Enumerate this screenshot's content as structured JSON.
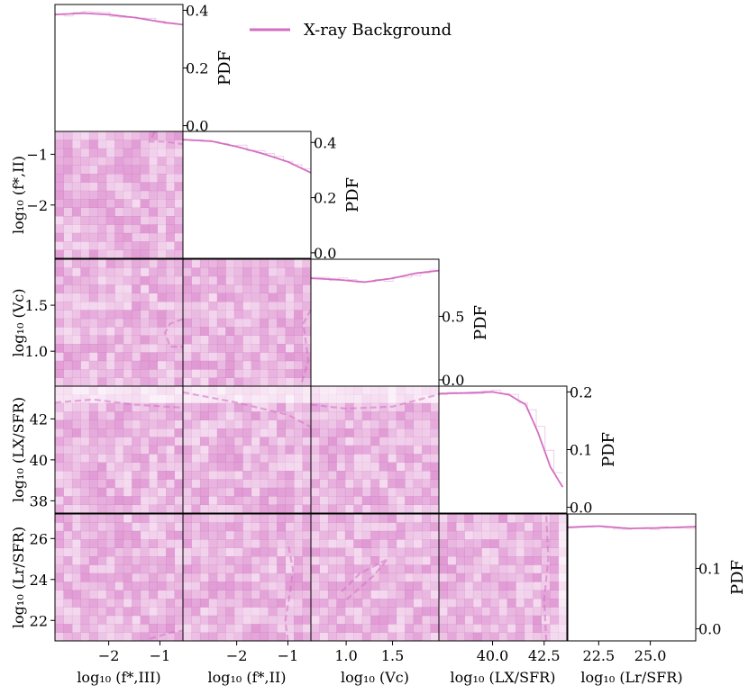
{
  "chart_data": {
    "type": "corner-plot",
    "legend": {
      "label": "X-ray Background",
      "color": "#d36fc1",
      "placement": "top-right"
    },
    "pdf_label": "PDF",
    "parameters": [
      {
        "key": "fIII",
        "xlabel": "log₁₀ (f*,III)",
        "ylabel": "log₁₀ (f*,III)",
        "range": [
          -3.05,
          -0.55
        ],
        "ticks": [
          -2,
          -1
        ],
        "tick_labels": [
          "−2",
          "−1"
        ]
      },
      {
        "key": "fII",
        "xlabel": "log₁₀ (f*,II)",
        "ylabel": "log₁₀ (f*,II)",
        "range": [
          -3.05,
          -0.55
        ],
        "ticks": [
          -2,
          -1
        ],
        "tick_labels": [
          "−2",
          "−1"
        ]
      },
      {
        "key": "Vc",
        "xlabel": "log₁₀ (Vc)",
        "ylabel": "log₁₀ (Vc)",
        "range": [
          0.62,
          2.0
        ],
        "ticks": [
          1.0,
          1.5
        ],
        "tick_labels": [
          "1.0",
          "1.5"
        ],
        "yticks": [
          1.0,
          1.5
        ],
        "ytick_labels": [
          "1.0",
          "1.5"
        ]
      },
      {
        "key": "LX",
        "xlabel": "log₁₀ (LX/SFR)",
        "ylabel": "log₁₀ (LX/SFR)",
        "range": [
          37.4,
          43.6
        ],
        "ticks": [
          40.0,
          42.5
        ],
        "tick_labels": [
          "40.0",
          "42.5"
        ],
        "yticks": [
          38,
          40,
          42
        ],
        "ytick_labels": [
          "38",
          "40",
          "42"
        ]
      },
      {
        "key": "Lr",
        "xlabel": "log₁₀ (Lr/SFR)",
        "ylabel": "log₁₀ (Lr/SFR)",
        "range": [
          21.0,
          27.2
        ],
        "ticks": [
          22.5,
          25.0
        ],
        "tick_labels": [
          "22.5",
          "25.0"
        ],
        "yticks": [
          22,
          24,
          26
        ],
        "ytick_labels": [
          "22",
          "24",
          "26"
        ]
      }
    ],
    "diagonal_pdfs": [
      {
        "param": "log₁₀ (f*,III)",
        "ylim": [
          -0.02,
          0.42
        ],
        "yticks": [
          0.0,
          0.2,
          0.4
        ],
        "ytick_labels": [
          "0.0",
          "0.2",
          "0.4"
        ],
        "x": [
          -3.05,
          -2.5,
          -2.0,
          -1.5,
          -1.0,
          -0.55
        ],
        "y": [
          0.385,
          0.39,
          0.385,
          0.375,
          0.36,
          0.35
        ]
      },
      {
        "param": "log₁₀ (f*,II)",
        "ylim": [
          -0.02,
          0.44
        ],
        "yticks": [
          0.0,
          0.2,
          0.4
        ],
        "ytick_labels": [
          "0.0",
          "0.2",
          "0.4"
        ],
        "x": [
          -3.05,
          -2.5,
          -2.0,
          -1.5,
          -1.0,
          -0.55
        ],
        "y": [
          0.41,
          0.405,
          0.385,
          0.36,
          0.33,
          0.29
        ]
      },
      {
        "param": "log₁₀ (Vc)",
        "ylim": [
          -0.05,
          0.95
        ],
        "yticks": [
          0.0,
          0.5
        ],
        "ytick_labels": [
          "0.0",
          "0.5"
        ],
        "x": [
          0.62,
          0.9,
          1.2,
          1.5,
          1.75,
          2.0
        ],
        "y": [
          0.8,
          0.79,
          0.77,
          0.8,
          0.84,
          0.86
        ]
      },
      {
        "param": "log₁₀ (LX/SFR)",
        "ylim": [
          -0.01,
          0.21
        ],
        "yticks": [
          0.0,
          0.1,
          0.2
        ],
        "ytick_labels": [
          "0.0",
          "0.1",
          "0.2"
        ],
        "x": [
          37.4,
          38.5,
          40.0,
          40.8,
          41.6,
          42.2,
          42.8,
          43.4
        ],
        "y": [
          0.197,
          0.198,
          0.2,
          0.195,
          0.178,
          0.13,
          0.07,
          0.035
        ]
      },
      {
        "param": "log₁₀ (Lr/SFR)",
        "ylim": [
          -0.02,
          0.19
        ],
        "yticks": [
          0.0,
          0.1
        ],
        "ytick_labels": [
          "0.0",
          "0.1"
        ],
        "x": [
          21.0,
          22.5,
          24.0,
          25.5,
          27.2
        ],
        "y": [
          0.168,
          0.17,
          0.166,
          0.167,
          0.169
        ]
      }
    ],
    "pair_panels": [
      {
        "row": "log₁₀ (f*,II)",
        "col": "log₁₀ (f*,III)",
        "contour": [
          [
            -1.1,
            -0.55
          ],
          [
            -1.2,
            -0.75
          ],
          [
            -0.9,
            -0.75
          ],
          [
            -0.55,
            -0.8
          ]
        ]
      },
      {
        "row": "log₁₀ (Vc)",
        "col": "log₁₀ (f*,III)",
        "contour": [
          [
            -0.55,
            1.35
          ],
          [
            -0.8,
            1.3
          ],
          [
            -0.9,
            1.2
          ],
          [
            -0.8,
            1.05
          ],
          [
            -0.55,
            1.05
          ]
        ]
      },
      {
        "row": "log₁₀ (Vc)",
        "col": "log₁₀ (f*,II)",
        "contour": [
          [
            -0.55,
            1.45
          ],
          [
            -0.7,
            1.3
          ],
          [
            -0.6,
            0.9
          ],
          [
            -0.75,
            0.62
          ]
        ]
      },
      {
        "row": "log₁₀ (LX/SFR)",
        "col": "log₁₀ (f*,III)",
        "contour": [
          [
            -3.05,
            42.8
          ],
          [
            -2.3,
            42.95
          ],
          [
            -1.5,
            42.7
          ],
          [
            -0.55,
            42.55
          ]
        ]
      },
      {
        "row": "log₁₀ (LX/SFR)",
        "col": "log₁₀ (f*,II)",
        "contour": [
          [
            -3.05,
            43.3
          ],
          [
            -2.0,
            42.8
          ],
          [
            -1.0,
            42.2
          ],
          [
            -0.55,
            41.6
          ]
        ]
      },
      {
        "row": "log₁₀ (LX/SFR)",
        "col": "log₁₀ (Vc)",
        "contour": [
          [
            0.62,
            42.7
          ],
          [
            1.0,
            42.5
          ],
          [
            1.5,
            42.6
          ],
          [
            2.0,
            43.2
          ]
        ]
      },
      {
        "row": "log₁₀ (Lr/SFR)",
        "col": "log₁₀ (f*,III)",
        "contour": [
          [
            -1.2,
            21.1
          ],
          [
            -0.8,
            21.4
          ],
          [
            -0.55,
            21.5
          ]
        ]
      },
      {
        "row": "log₁₀ (Lr/SFR)",
        "col": "log₁₀ (f*,II)",
        "contour": [
          [
            -1.0,
            21.0
          ],
          [
            -1.05,
            22.0
          ],
          [
            -0.95,
            23.5
          ],
          [
            -0.9,
            24.5
          ],
          [
            -1.0,
            25.8
          ]
        ]
      },
      {
        "row": "log₁₀ (Lr/SFR)",
        "col": "log₁₀ (Vc)",
        "contour": [
          [
            0.95,
            23.4
          ],
          [
            1.15,
            24.3
          ],
          [
            1.45,
            25.0
          ],
          [
            1.3,
            24.2
          ],
          [
            1.0,
            23.0
          ]
        ]
      },
      {
        "row": "log₁₀ (Lr/SFR)",
        "col": "log₁₀ (LX/SFR)",
        "contour": [
          [
            42.6,
            21.0
          ],
          [
            42.5,
            23.0
          ],
          [
            42.7,
            25.0
          ],
          [
            42.6,
            27.2
          ]
        ]
      }
    ]
  }
}
